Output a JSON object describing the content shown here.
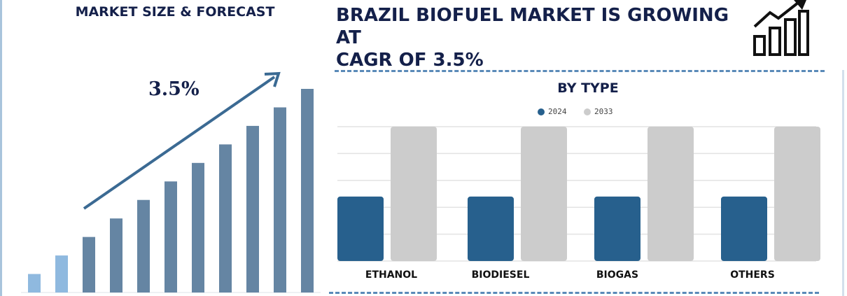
{
  "left_panel": {
    "title": "MARKET SIZE & FORECAST",
    "cagr_label": "3.5%"
  },
  "header": {
    "title_line1": "BRAZIL BIOFUEL MARKET IS GROWING AT",
    "title_line2": "CAGR OF 3.5%"
  },
  "colors": {
    "navy": "#14204a",
    "bar_2024": "#27608d",
    "bar_2033": "#cccccc",
    "growth_bar": "#6585a3",
    "growth_bar_light": "#8fb9df",
    "arrow": "#3b6a93"
  },
  "chart_data": [
    {
      "type": "bar",
      "title": "",
      "values": [
        1,
        2,
        3,
        4,
        5,
        6,
        7,
        8,
        9,
        10,
        11
      ],
      "note": "relative growth bars, first two highlighted"
    },
    {
      "type": "bar",
      "title": "BY TYPE",
      "categories": [
        "ETHANOL",
        "BIODIESEL",
        "BIOGAS",
        "OTHERS"
      ],
      "series": [
        {
          "name": "2024",
          "values": [
            2.4,
            2.4,
            2.4,
            2.4
          ]
        },
        {
          "name": "2033",
          "values": [
            5,
            5,
            5,
            5
          ]
        }
      ],
      "ylim": [
        0,
        5
      ],
      "grid": true,
      "legend": "top-center",
      "xlabel": "",
      "ylabel": ""
    }
  ]
}
